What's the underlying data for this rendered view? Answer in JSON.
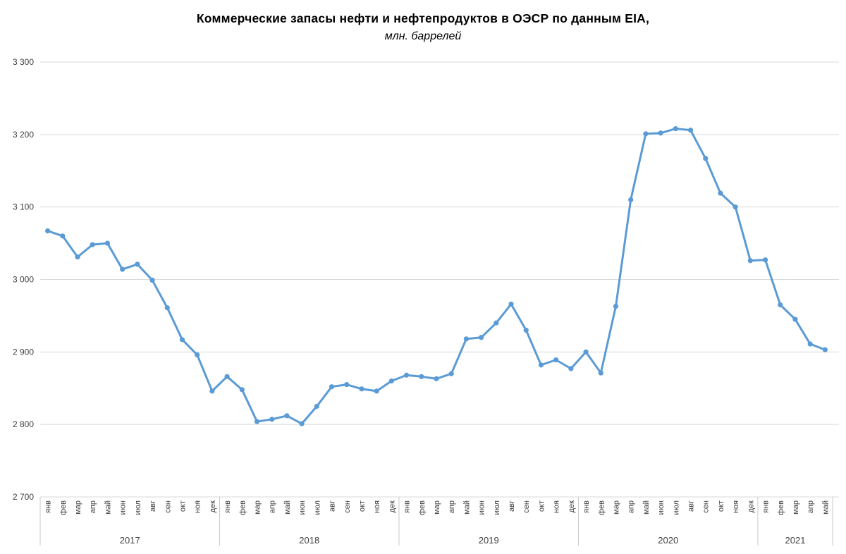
{
  "chart_data": {
    "type": "line",
    "title": "Коммерческие запасы нефти и нефтепродуктов в ОЭСР по данным EIA,",
    "subtitle": "млн. баррелей",
    "ylim": [
      2700,
      3300
    ],
    "ytick_step": 100,
    "ytick_labels": [
      "3 300",
      "3 200",
      "3 100",
      "3 000",
      "2 900",
      "2 800",
      "2 700"
    ],
    "grid": true,
    "legend": "none",
    "month_names": [
      "янв",
      "фев",
      "мар",
      "апр",
      "май",
      "июн",
      "июл",
      "авг",
      "сен",
      "окт",
      "ноя",
      "дек"
    ],
    "years": [
      {
        "label": "2017",
        "values": [
          3067,
          3060,
          3031,
          3048,
          3050,
          3014,
          3021,
          2999,
          2961,
          2917,
          2896,
          2846
        ]
      },
      {
        "label": "2018",
        "values": [
          2866,
          2848,
          2804,
          2807,
          2812,
          2801,
          2825,
          2852,
          2855,
          2849,
          2846,
          2860
        ]
      },
      {
        "label": "2019",
        "values": [
          2868,
          2866,
          2863,
          2870,
          2918,
          2920,
          2940,
          2966,
          2930,
          2882,
          2889,
          2877
        ]
      },
      {
        "label": "2020",
        "values": [
          2900,
          2871,
          2963,
          3110,
          3201,
          3202,
          3208,
          3206,
          3167,
          3119,
          3100,
          3026
        ]
      },
      {
        "label": "2021",
        "values": [
          3027,
          2965,
          2945,
          2911,
          2903
        ]
      }
    ]
  },
  "colors": {
    "line": "#5B9BD5",
    "marker": "#5B9BD5",
    "gridline": "#D9D9D9",
    "separator": "#C9C9C9",
    "axis_text": "#3f3f3f",
    "title_text": "#000000",
    "background": "#ffffff"
  }
}
